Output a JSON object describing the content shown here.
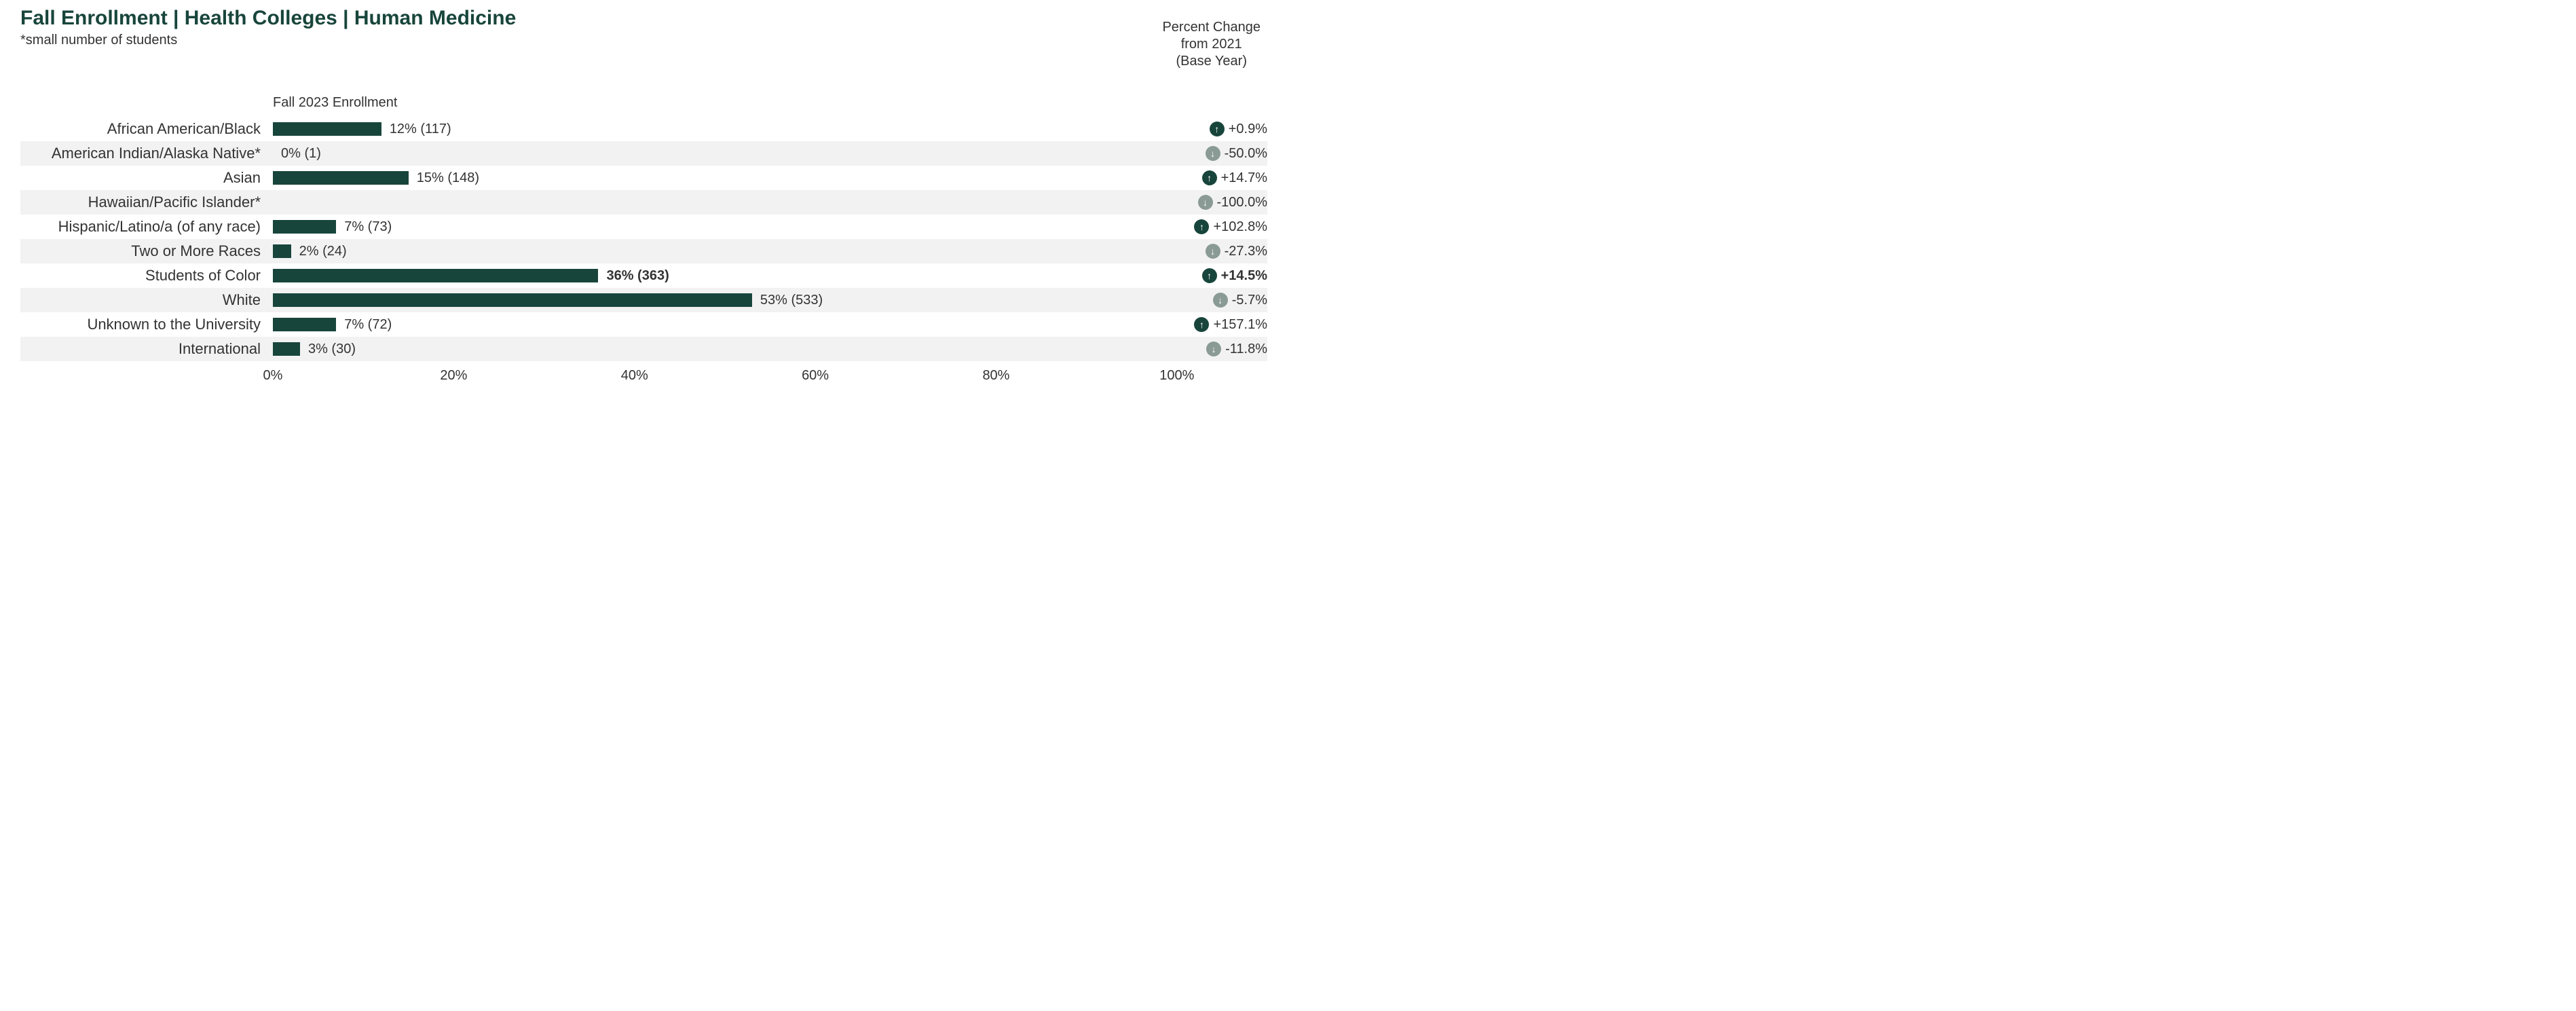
{
  "title": "Fall Enrollment | Health Colleges | Human Medicine",
  "subtitle": "*small number of students",
  "pct_change_header_l1": "Percent Change",
  "pct_change_header_l2": "from 2021",
  "pct_change_header_l3": "(Base Year)",
  "chart_col_title": "Fall 2023 Enrollment",
  "chart": {
    "type": "bar",
    "orientation": "horizontal",
    "bar_color": "#18453B",
    "band_color": "#f2f2f2",
    "background_color": "#ffffff",
    "label_fontsize": 22,
    "value_fontsize": 20,
    "xlim": [
      0,
      110
    ],
    "xtick_step": 20,
    "xticks": [
      {
        "pos": 0,
        "label": "0%"
      },
      {
        "pos": 20,
        "label": "20%"
      },
      {
        "pos": 40,
        "label": "40%"
      },
      {
        "pos": 60,
        "label": "60%"
      },
      {
        "pos": 80,
        "label": "80%"
      },
      {
        "pos": 100,
        "label": "100%"
      }
    ],
    "up_color": "#18453B",
    "down_color": "#8a9a94",
    "rows": [
      {
        "label": "African American/Black",
        "pct": 12,
        "count": 117,
        "value_text": "12% (117)",
        "band": false,
        "bold": false,
        "change": "+0.9%",
        "dir": "up"
      },
      {
        "label": "American Indian/Alaska Native*",
        "pct": 0,
        "count": 1,
        "value_text": "0% (1)",
        "band": true,
        "bold": false,
        "change": "-50.0%",
        "dir": "down"
      },
      {
        "label": "Asian",
        "pct": 15,
        "count": 148,
        "value_text": "15% (148)",
        "band": false,
        "bold": false,
        "change": "+14.7%",
        "dir": "up"
      },
      {
        "label": "Hawaiian/Pacific Islander*",
        "pct": 0,
        "count": 0,
        "value_text": "",
        "band": true,
        "bold": false,
        "change": "-100.0%",
        "dir": "down"
      },
      {
        "label": "Hispanic/Latino/a (of any race)",
        "pct": 7,
        "count": 73,
        "value_text": "7% (73)",
        "band": false,
        "bold": false,
        "change": "+102.8%",
        "dir": "up"
      },
      {
        "label": "Two or More Races",
        "pct": 2,
        "count": 24,
        "value_text": "2% (24)",
        "band": true,
        "bold": false,
        "change": "-27.3%",
        "dir": "down"
      },
      {
        "label": "Students of Color",
        "pct": 36,
        "count": 363,
        "value_text": "36% (363)",
        "band": false,
        "bold": true,
        "change": "+14.5%",
        "dir": "up"
      },
      {
        "label": "White",
        "pct": 53,
        "count": 533,
        "value_text": "53% (533)",
        "band": true,
        "bold": false,
        "change": "-5.7%",
        "dir": "down"
      },
      {
        "label": "Unknown to the University",
        "pct": 7,
        "count": 72,
        "value_text": "7% (72)",
        "band": false,
        "bold": false,
        "change": "+157.1%",
        "dir": "up"
      },
      {
        "label": "International",
        "pct": 3,
        "count": 30,
        "value_text": "3% (30)",
        "band": true,
        "bold": false,
        "change": "-11.8%",
        "dir": "down"
      }
    ]
  }
}
